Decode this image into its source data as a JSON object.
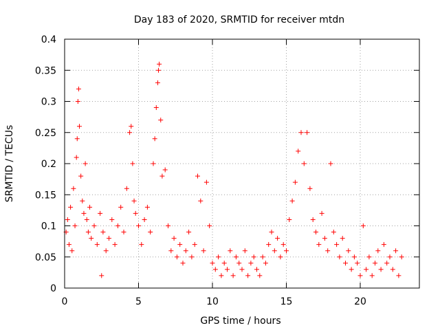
{
  "chart_data": {
    "type": "scatter",
    "title": "Day 183 of 2020, SRMTID for receiver mtdn",
    "xlabel": "GPS time / hours",
    "ylabel": "SRMTID / TECUs",
    "xlim": [
      0,
      24
    ],
    "ylim": [
      0,
      0.4
    ],
    "xticks": [
      0,
      5,
      10,
      15,
      20
    ],
    "xtick_labels": [
      "0",
      "5",
      "10",
      "15",
      "20"
    ],
    "yticks": [
      0,
      0.05,
      0.1,
      0.15,
      0.2,
      0.25,
      0.3,
      0.35,
      0.4
    ],
    "ytick_labels": [
      "0",
      "0.05",
      "0.1",
      "0.15",
      "0.2",
      "0.25",
      "0.3",
      "0.35",
      "0.4"
    ],
    "grid": true,
    "marker": "+",
    "color": "#ff0000",
    "series": [
      {
        "name": "SRMTID",
        "points": [
          [
            0.1,
            0.09
          ],
          [
            0.2,
            0.11
          ],
          [
            0.3,
            0.07
          ],
          [
            0.4,
            0.13
          ],
          [
            0.5,
            0.06
          ],
          [
            0.6,
            0.16
          ],
          [
            0.7,
            0.1
          ],
          [
            0.8,
            0.21
          ],
          [
            0.85,
            0.24
          ],
          [
            0.9,
            0.3
          ],
          [
            0.95,
            0.32
          ],
          [
            1.0,
            0.26
          ],
          [
            1.1,
            0.18
          ],
          [
            1.2,
            0.14
          ],
          [
            1.3,
            0.12
          ],
          [
            1.4,
            0.2
          ],
          [
            1.5,
            0.11
          ],
          [
            1.6,
            0.09
          ],
          [
            1.7,
            0.13
          ],
          [
            1.8,
            0.08
          ],
          [
            2.0,
            0.1
          ],
          [
            2.2,
            0.07
          ],
          [
            2.4,
            0.12
          ],
          [
            2.5,
            0.02
          ],
          [
            2.6,
            0.09
          ],
          [
            2.8,
            0.06
          ],
          [
            3.0,
            0.08
          ],
          [
            3.2,
            0.11
          ],
          [
            3.4,
            0.07
          ],
          [
            3.6,
            0.1
          ],
          [
            3.8,
            0.13
          ],
          [
            4.0,
            0.09
          ],
          [
            4.2,
            0.16
          ],
          [
            4.4,
            0.25
          ],
          [
            4.5,
            0.26
          ],
          [
            4.6,
            0.2
          ],
          [
            4.7,
            0.14
          ],
          [
            4.8,
            0.12
          ],
          [
            5.0,
            0.1
          ],
          [
            5.2,
            0.07
          ],
          [
            5.4,
            0.11
          ],
          [
            5.6,
            0.13
          ],
          [
            5.8,
            0.09
          ],
          [
            6.0,
            0.2
          ],
          [
            6.1,
            0.24
          ],
          [
            6.2,
            0.29
          ],
          [
            6.3,
            0.33
          ],
          [
            6.35,
            0.35
          ],
          [
            6.4,
            0.36
          ],
          [
            6.5,
            0.27
          ],
          [
            6.6,
            0.18
          ],
          [
            6.8,
            0.19
          ],
          [
            7.0,
            0.1
          ],
          [
            7.2,
            0.06
          ],
          [
            7.4,
            0.08
          ],
          [
            7.6,
            0.05
          ],
          [
            7.8,
            0.07
          ],
          [
            8.0,
            0.04
          ],
          [
            8.2,
            0.06
          ],
          [
            8.4,
            0.09
          ],
          [
            8.6,
            0.05
          ],
          [
            8.8,
            0.07
          ],
          [
            9.0,
            0.18
          ],
          [
            9.2,
            0.14
          ],
          [
            9.4,
            0.06
          ],
          [
            9.6,
            0.17
          ],
          [
            9.8,
            0.1
          ],
          [
            10.0,
            0.04
          ],
          [
            10.2,
            0.03
          ],
          [
            10.4,
            0.05
          ],
          [
            10.6,
            0.02
          ],
          [
            10.8,
            0.04
          ],
          [
            11.0,
            0.03
          ],
          [
            11.2,
            0.06
          ],
          [
            11.4,
            0.02
          ],
          [
            11.6,
            0.05
          ],
          [
            11.8,
            0.04
          ],
          [
            12.0,
            0.03
          ],
          [
            12.2,
            0.06
          ],
          [
            12.4,
            0.02
          ],
          [
            12.6,
            0.04
          ],
          [
            12.8,
            0.05
          ],
          [
            13.0,
            0.03
          ],
          [
            13.2,
            0.02
          ],
          [
            13.4,
            0.05
          ],
          [
            13.6,
            0.04
          ],
          [
            13.8,
            0.07
          ],
          [
            14.0,
            0.09
          ],
          [
            14.2,
            0.06
          ],
          [
            14.4,
            0.08
          ],
          [
            14.6,
            0.05
          ],
          [
            14.8,
            0.07
          ],
          [
            15.0,
            0.06
          ],
          [
            15.2,
            0.11
          ],
          [
            15.4,
            0.14
          ],
          [
            15.6,
            0.17
          ],
          [
            15.8,
            0.22
          ],
          [
            16.0,
            0.25
          ],
          [
            16.2,
            0.2
          ],
          [
            16.4,
            0.25
          ],
          [
            16.6,
            0.16
          ],
          [
            16.8,
            0.11
          ],
          [
            17.0,
            0.09
          ],
          [
            17.2,
            0.07
          ],
          [
            17.4,
            0.12
          ],
          [
            17.6,
            0.08
          ],
          [
            17.8,
            0.06
          ],
          [
            18.0,
            0.2
          ],
          [
            18.2,
            0.09
          ],
          [
            18.4,
            0.07
          ],
          [
            18.6,
            0.05
          ],
          [
            18.8,
            0.08
          ],
          [
            19.0,
            0.04
          ],
          [
            19.2,
            0.06
          ],
          [
            19.4,
            0.03
          ],
          [
            19.6,
            0.05
          ],
          [
            19.8,
            0.04
          ],
          [
            20.0,
            0.02
          ],
          [
            20.2,
            0.1
          ],
          [
            20.4,
            0.03
          ],
          [
            20.6,
            0.05
          ],
          [
            20.8,
            0.02
          ],
          [
            21.0,
            0.04
          ],
          [
            21.2,
            0.06
          ],
          [
            21.4,
            0.03
          ],
          [
            21.6,
            0.07
          ],
          [
            21.8,
            0.04
          ],
          [
            22.0,
            0.05
          ],
          [
            22.2,
            0.03
          ],
          [
            22.4,
            0.06
          ],
          [
            22.6,
            0.02
          ],
          [
            22.8,
            0.05
          ]
        ]
      }
    ]
  }
}
